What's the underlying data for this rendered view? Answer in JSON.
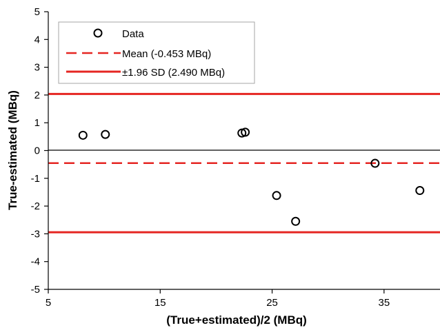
{
  "chart_data": {
    "type": "scatter",
    "title": "",
    "xlabel": "(True+estimated)/2 (MBq)",
    "ylabel": "True-estimated (MBq)",
    "xlim": [
      5,
      40
    ],
    "ylim": [
      -5,
      5
    ],
    "x_ticks": [
      5,
      15,
      25,
      35
    ],
    "x_tick_labels": [
      "5",
      "15",
      "25",
      "35"
    ],
    "y_ticks": [
      5,
      4,
      3,
      2,
      1,
      0,
      -1,
      -2,
      -3,
      -4,
      -5
    ],
    "y_tick_labels": [
      "5",
      "4",
      "3",
      "2",
      "1",
      "0",
      "-1",
      "-2",
      "-3",
      "-4",
      "-5"
    ],
    "grid": false,
    "legend_position": "top-left",
    "series": [
      {
        "name": "Data",
        "marker": "open-circle",
        "color": "#000000",
        "x": [
          8.1,
          10.1,
          22.3,
          22.6,
          25.4,
          27.1,
          34.2,
          38.2
        ],
        "y": [
          0.55,
          0.58,
          0.63,
          0.66,
          -1.62,
          -2.55,
          -0.46,
          -1.44
        ]
      }
    ],
    "lines": [
      {
        "name": "Mean (-0.453 MBq)",
        "style": "dashed",
        "color": "#e52521",
        "y": -0.453
      },
      {
        "name": "±1.96 SD (2.490 MBq)",
        "style": "solid",
        "color": "#e52521",
        "y": 2.037
      },
      {
        "name": "",
        "style": "solid",
        "color": "#e52521",
        "y": -2.943
      }
    ]
  }
}
